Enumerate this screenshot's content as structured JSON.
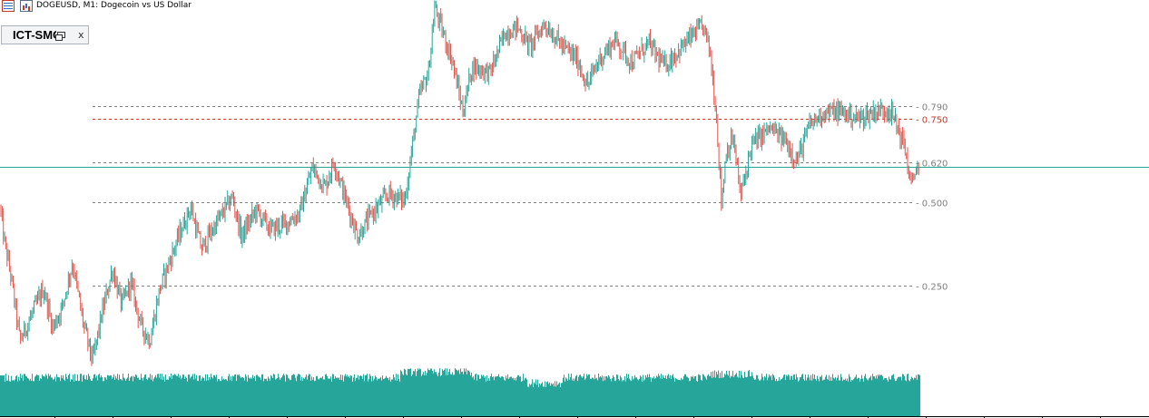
{
  "header": {
    "title": "DOGEUSD, M1:  Dogecoin vs US Dollar",
    "icons": [
      "window-list-icon",
      "chart-icon"
    ]
  },
  "indicator_panel": {
    "name": "ICT-SMC",
    "close_label": "x",
    "icons": [
      "restore-window-icon",
      "close-icon"
    ]
  },
  "chart_data": {
    "type": "candlestick",
    "symbol": "DOGEUSD",
    "timeframe": "M1",
    "description": "Dogecoin vs US Dollar",
    "title": "DOGEUSD, M1:  Dogecoin vs US Dollar",
    "level_lines": [
      {
        "label": "0.790",
        "color": "#7f7f7f",
        "style": "dashed"
      },
      {
        "label": "0.750",
        "color": "#c0392b",
        "style": "dashed"
      },
      {
        "label": "0.620",
        "color": "#7f7f7f",
        "style": "dashed"
      },
      {
        "label": "0.500",
        "color": "#7f7f7f",
        "style": "dashed"
      },
      {
        "label": "0.250",
        "color": "#7f7f7f",
        "style": "dashed"
      }
    ],
    "horizontal_line_color": "#26a69a",
    "price_path_key_points": [
      [
        0,
        0.49
      ],
      [
        5,
        0.38
      ],
      [
        12,
        0.28
      ],
      [
        22,
        0.08
      ],
      [
        38,
        0.18
      ],
      [
        48,
        0.24
      ],
      [
        58,
        0.12
      ],
      [
        68,
        0.18
      ],
      [
        80,
        0.32
      ],
      [
        92,
        0.13
      ],
      [
        102,
        0.02
      ],
      [
        112,
        0.16
      ],
      [
        124,
        0.3
      ],
      [
        134,
        0.19
      ],
      [
        144,
        0.26
      ],
      [
        155,
        0.13
      ],
      [
        165,
        0.08
      ],
      [
        176,
        0.24
      ],
      [
        194,
        0.38
      ],
      [
        210,
        0.49
      ],
      [
        222,
        0.36
      ],
      [
        236,
        0.43
      ],
      [
        256,
        0.52
      ],
      [
        266,
        0.4
      ],
      [
        282,
        0.48
      ],
      [
        298,
        0.42
      ],
      [
        315,
        0.44
      ],
      [
        330,
        0.47
      ],
      [
        344,
        0.61
      ],
      [
        358,
        0.55
      ],
      [
        368,
        0.63
      ],
      [
        380,
        0.52
      ],
      [
        394,
        0.4
      ],
      [
        410,
        0.47
      ],
      [
        428,
        0.53
      ],
      [
        446,
        0.51
      ],
      [
        462,
        0.83
      ],
      [
        472,
        0.9
      ],
      [
        479,
        1.1
      ],
      [
        488,
        1.02
      ],
      [
        498,
        0.94
      ],
      [
        510,
        0.78
      ],
      [
        520,
        0.92
      ],
      [
        540,
        0.9
      ],
      [
        556,
        1.02
      ],
      [
        570,
        1.04
      ],
      [
        584,
        0.98
      ],
      [
        600,
        1.05
      ],
      [
        620,
        0.98
      ],
      [
        636,
        0.94
      ],
      [
        647,
        0.86
      ],
      [
        660,
        0.94
      ],
      [
        678,
        1.0
      ],
      [
        696,
        0.93
      ],
      [
        714,
        0.99
      ],
      [
        732,
        0.92
      ],
      [
        752,
        0.98
      ],
      [
        765,
        1.02
      ],
      [
        775,
        1.04
      ],
      [
        782,
        0.97
      ],
      [
        789,
        0.78
      ],
      [
        795,
        0.5
      ],
      [
        800,
        0.66
      ],
      [
        808,
        0.7
      ],
      [
        816,
        0.52
      ],
      [
        828,
        0.68
      ],
      [
        848,
        0.73
      ],
      [
        866,
        0.69
      ],
      [
        878,
        0.63
      ],
      [
        892,
        0.74
      ],
      [
        908,
        0.78
      ],
      [
        928,
        0.78
      ],
      [
        946,
        0.76
      ],
      [
        962,
        0.78
      ],
      [
        980,
        0.79
      ],
      [
        988,
        0.74
      ],
      [
        997,
        0.67
      ],
      [
        1004,
        0.55
      ],
      [
        1010,
        0.62
      ],
      [
        1013,
        0.59
      ]
    ],
    "candle_up_color": "#26a69a",
    "candle_down_color": "#e5534b",
    "volume_color": "#26a69a",
    "grid": false,
    "legend": "none"
  }
}
